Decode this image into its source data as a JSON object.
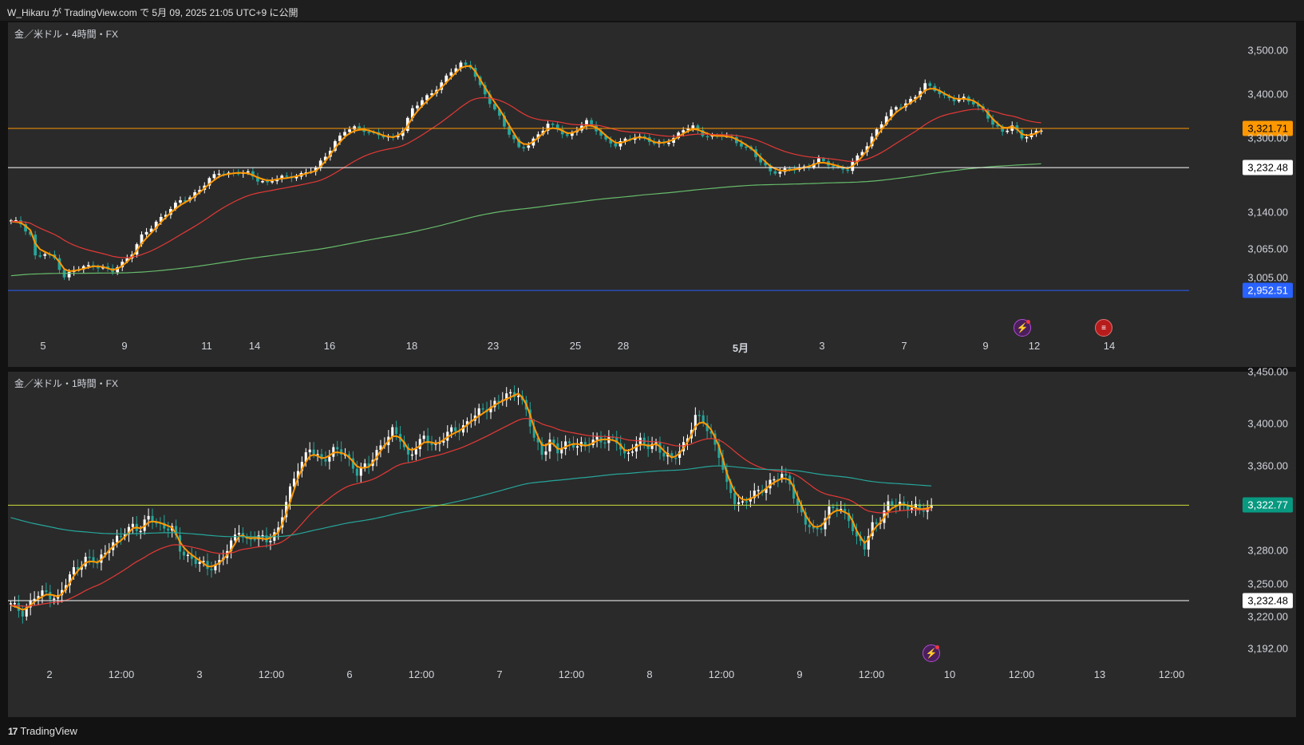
{
  "header": {
    "publish_text": "W_Hikaru が TradingView.com で 5月 09, 2025 21:05 UTC+9 に公開"
  },
  "footer": {
    "logo_mark": "17",
    "logo_text": "TradingView"
  },
  "colors": {
    "bull": "#ffffff",
    "bear": "#26a69a",
    "fast_ma": "#ff9800",
    "mid_ma": "#e53935",
    "slow_ma_4h": "#66bb6a",
    "slow_ma_1h": "#26a69a"
  },
  "panes": [
    {
      "title": "金／米ドル・4時間・FX",
      "price_ticks": [
        "3,500.00",
        "3,400.00",
        "3,300.00",
        "3,140.00",
        "3,065.00",
        "3,005.00"
      ],
      "time_ticks": [
        "5",
        "9",
        "11",
        "14",
        "16",
        "18",
        "23",
        "25",
        "28",
        "5月",
        "3",
        "7",
        "9",
        "12",
        "14"
      ],
      "lines": [
        {
          "label": "3,321.71",
          "value": 3321.71,
          "color": "#ff9800",
          "label_bg": "#ff9800",
          "label_fg": "#000000"
        },
        {
          "label": "3,232.48",
          "value": 3232.48,
          "color": "#ffffff",
          "label_bg": "#ffffff",
          "label_fg": "#000000"
        },
        {
          "label": "2,952.51",
          "value": 2952.51,
          "color": "#2962ff",
          "label_bg": "#2962ff",
          "label_fg": "#ffffff"
        }
      ],
      "events": [
        {
          "icon": "lightning-icon"
        },
        {
          "icon": "us-flag-icon"
        }
      ]
    },
    {
      "title": "金／米ドル・1時間・FX",
      "price_ticks": [
        "3,450.00",
        "3,400.00",
        "3,360.00",
        "3,280.00",
        "3,250.00",
        "3,220.00",
        "3,192.00"
      ],
      "time_ticks": [
        "2",
        "12:00",
        "3",
        "12:00",
        "6",
        "12:00",
        "7",
        "12:00",
        "8",
        "12:00",
        "9",
        "12:00",
        "10",
        "12:00",
        "13",
        "12:00"
      ],
      "lines": [
        {
          "label": "3,322.77",
          "value": 3322.77,
          "color": "#cddc39",
          "label_bg": "#089981",
          "label_fg": "#ffffff"
        },
        {
          "label": "3,232.48",
          "value": 3232.48,
          "color": "#ffffff",
          "label_bg": "#ffffff",
          "label_fg": "#000000"
        }
      ],
      "events": [
        {
          "icon": "lightning-icon"
        }
      ]
    }
  ],
  "chart_data": [
    {
      "type": "candlestick",
      "title": "金／米ドル・4時間・FX",
      "close_path": [
        [
          0,
          3110
        ],
        [
          2,
          3105
        ],
        [
          4,
          3080
        ],
        [
          5,
          3030
        ],
        [
          7,
          3035
        ],
        [
          9,
          3025
        ],
        [
          11,
          2985
        ],
        [
          13,
          2998
        ],
        [
          15,
          3005
        ],
        [
          17,
          3010
        ],
        [
          19,
          3005
        ],
        [
          21,
          2995
        ],
        [
          23,
          3015
        ],
        [
          25,
          3040
        ],
        [
          27,
          3075
        ],
        [
          29,
          3095
        ],
        [
          31,
          3120
        ],
        [
          33,
          3140
        ],
        [
          35,
          3155
        ],
        [
          37,
          3165
        ],
        [
          39,
          3185
        ],
        [
          41,
          3205
        ],
        [
          43,
          3220
        ],
        [
          45,
          3220
        ],
        [
          47,
          3222
        ],
        [
          49,
          3218
        ],
        [
          51,
          3205
        ],
        [
          53,
          3200
        ],
        [
          55,
          3208
        ],
        [
          57,
          3210
        ],
        [
          59,
          3215
        ],
        [
          61,
          3222
        ],
        [
          63,
          3228
        ],
        [
          65,
          3260
        ],
        [
          67,
          3292
        ],
        [
          69,
          3315
        ],
        [
          71,
          3322
        ],
        [
          73,
          3320
        ],
        [
          75,
          3310
        ],
        [
          77,
          3302
        ],
        [
          79,
          3300
        ],
        [
          81,
          3320
        ],
        [
          83,
          3365
        ],
        [
          85,
          3385
        ],
        [
          87,
          3405
        ],
        [
          89,
          3425
        ],
        [
          91,
          3450
        ],
        [
          93,
          3470
        ],
        [
          95,
          3465
        ],
        [
          97,
          3415
        ],
        [
          99,
          3380
        ],
        [
          101,
          3350
        ],
        [
          103,
          3310
        ],
        [
          105,
          3275
        ],
        [
          107,
          3285
        ],
        [
          109,
          3310
        ],
        [
          111,
          3330
        ],
        [
          113,
          3320
        ],
        [
          115,
          3305
        ],
        [
          117,
          3320
        ],
        [
          119,
          3335
        ],
        [
          121,
          3320
        ],
        [
          123,
          3295
        ],
        [
          125,
          3282
        ],
        [
          127,
          3295
        ],
        [
          129,
          3305
        ],
        [
          131,
          3300
        ],
        [
          133,
          3285
        ],
        [
          135,
          3290
        ],
        [
          137,
          3300
        ],
        [
          139,
          3318
        ],
        [
          141,
          3325
        ],
        [
          143,
          3310
        ],
        [
          145,
          3302
        ],
        [
          147,
          3305
        ],
        [
          149,
          3300
        ],
        [
          151,
          3285
        ],
        [
          153,
          3270
        ],
        [
          155,
          3245
        ],
        [
          157,
          3226
        ],
        [
          159,
          3222
        ],
        [
          161,
          3228
        ],
        [
          163,
          3232
        ],
        [
          165,
          3238
        ],
        [
          167,
          3248
        ],
        [
          169,
          3240
        ],
        [
          171,
          3233
        ],
        [
          173,
          3228
        ],
        [
          175,
          3255
        ],
        [
          177,
          3285
        ],
        [
          179,
          3320
        ],
        [
          181,
          3348
        ],
        [
          183,
          3370
        ],
        [
          185,
          3380
        ],
        [
          187,
          3395
        ],
        [
          189,
          3420
        ],
        [
          191,
          3412
        ],
        [
          193,
          3395
        ],
        [
          195,
          3385
        ],
        [
          197,
          3390
        ],
        [
          199,
          3382
        ],
        [
          201,
          3360
        ],
        [
          203,
          3330
        ],
        [
          205,
          3315
        ],
        [
          207,
          3330
        ],
        [
          209,
          3298
        ],
        [
          211,
          3308
        ],
        [
          213,
          3322
        ]
      ],
      "moving_averages": [
        "fast (orange)",
        "mid (red)",
        "slow (green)"
      ],
      "horizontal_lines": [
        3321.71,
        3232.48,
        2952.51
      ],
      "x_ticks": [
        "5",
        "9",
        "11",
        "14",
        "16",
        "18",
        "23",
        "25",
        "28",
        "5月",
        "3",
        "7",
        "9",
        "12",
        "14"
      ],
      "y_ticks": [
        3500,
        3400,
        3300,
        3140,
        3065,
        3005
      ]
    },
    {
      "type": "candlestick",
      "title": "金／米ドル・1時間・FX",
      "close_path": [
        [
          0,
          3228
        ],
        [
          3,
          3222
        ],
        [
          6,
          3235
        ],
        [
          9,
          3240
        ],
        [
          12,
          3235
        ],
        [
          14,
          3248
        ],
        [
          16,
          3262
        ],
        [
          19,
          3272
        ],
        [
          22,
          3268
        ],
        [
          25,
          3285
        ],
        [
          28,
          3292
        ],
        [
          31,
          3305
        ],
        [
          33,
          3300
        ],
        [
          35,
          3310
        ],
        [
          38,
          3305
        ],
        [
          41,
          3300
        ],
        [
          43,
          3280
        ],
        [
          45,
          3275
        ],
        [
          48,
          3268
        ],
        [
          50,
          3262
        ],
        [
          53,
          3270
        ],
        [
          56,
          3285
        ],
        [
          58,
          3300
        ],
        [
          60,
          3290
        ],
        [
          62,
          3292
        ],
        [
          65,
          3290
        ],
        [
          68,
          3300
        ],
        [
          70,
          3325
        ],
        [
          73,
          3360
        ],
        [
          76,
          3375
        ],
        [
          79,
          3365
        ],
        [
          82,
          3375
        ],
        [
          85,
          3370
        ],
        [
          88,
          3355
        ],
        [
          91,
          3360
        ],
        [
          94,
          3380
        ],
        [
          97,
          3392
        ],
        [
          99,
          3385
        ],
        [
          101,
          3370
        ],
        [
          103,
          3378
        ],
        [
          105,
          3385
        ],
        [
          108,
          3380
        ],
        [
          111,
          3390
        ],
        [
          114,
          3395
        ],
        [
          117,
          3405
        ],
        [
          120,
          3412
        ],
        [
          123,
          3420
        ],
        [
          126,
          3425
        ],
        [
          129,
          3430
        ],
        [
          131,
          3412
        ],
        [
          133,
          3385
        ],
        [
          135,
          3372
        ],
        [
          137,
          3385
        ],
        [
          139,
          3372
        ],
        [
          141,
          3380
        ],
        [
          143,
          3382
        ],
        [
          146,
          3378
        ],
        [
          149,
          3386
        ],
        [
          152,
          3385
        ],
        [
          154,
          3382
        ],
        [
          156,
          3370
        ],
        [
          158,
          3378
        ],
        [
          160,
          3382
        ],
        [
          162,
          3378
        ],
        [
          164,
          3382
        ],
        [
          166,
          3370
        ],
        [
          168,
          3365
        ],
        [
          170,
          3375
        ],
        [
          172,
          3388
        ],
        [
          174,
          3405
        ],
        [
          176,
          3402
        ],
        [
          178,
          3390
        ],
        [
          180,
          3370
        ],
        [
          182,
          3340
        ],
        [
          184,
          3328
        ],
        [
          186,
          3325
        ],
        [
          188,
          3330
        ],
        [
          190,
          3335
        ],
        [
          193,
          3345
        ],
        [
          196,
          3350
        ],
        [
          198,
          3345
        ],
        [
          200,
          3322
        ],
        [
          202,
          3305
        ],
        [
          204,
          3298
        ],
        [
          206,
          3305
        ],
        [
          208,
          3318
        ],
        [
          210,
          3320
        ],
        [
          213,
          3312
        ],
        [
          215,
          3290
        ],
        [
          217,
          3282
        ],
        [
          219,
          3305
        ],
        [
          221,
          3310
        ],
        [
          223,
          3322
        ],
        [
          226,
          3325
        ],
        [
          229,
          3320
        ],
        [
          231,
          3318
        ],
        [
          234,
          3322
        ]
      ],
      "moving_averages": [
        "fast (orange)",
        "mid (red)",
        "slow (teal)"
      ],
      "horizontal_lines": [
        3322.77,
        3232.48
      ],
      "x_ticks": [
        "2",
        "12:00",
        "3",
        "12:00",
        "6",
        "12:00",
        "7",
        "12:00",
        "8",
        "12:00",
        "9",
        "12:00",
        "10",
        "12:00",
        "13",
        "12:00"
      ],
      "y_ticks": [
        3450,
        3400,
        3360,
        3280,
        3250,
        3220,
        3192
      ]
    }
  ]
}
